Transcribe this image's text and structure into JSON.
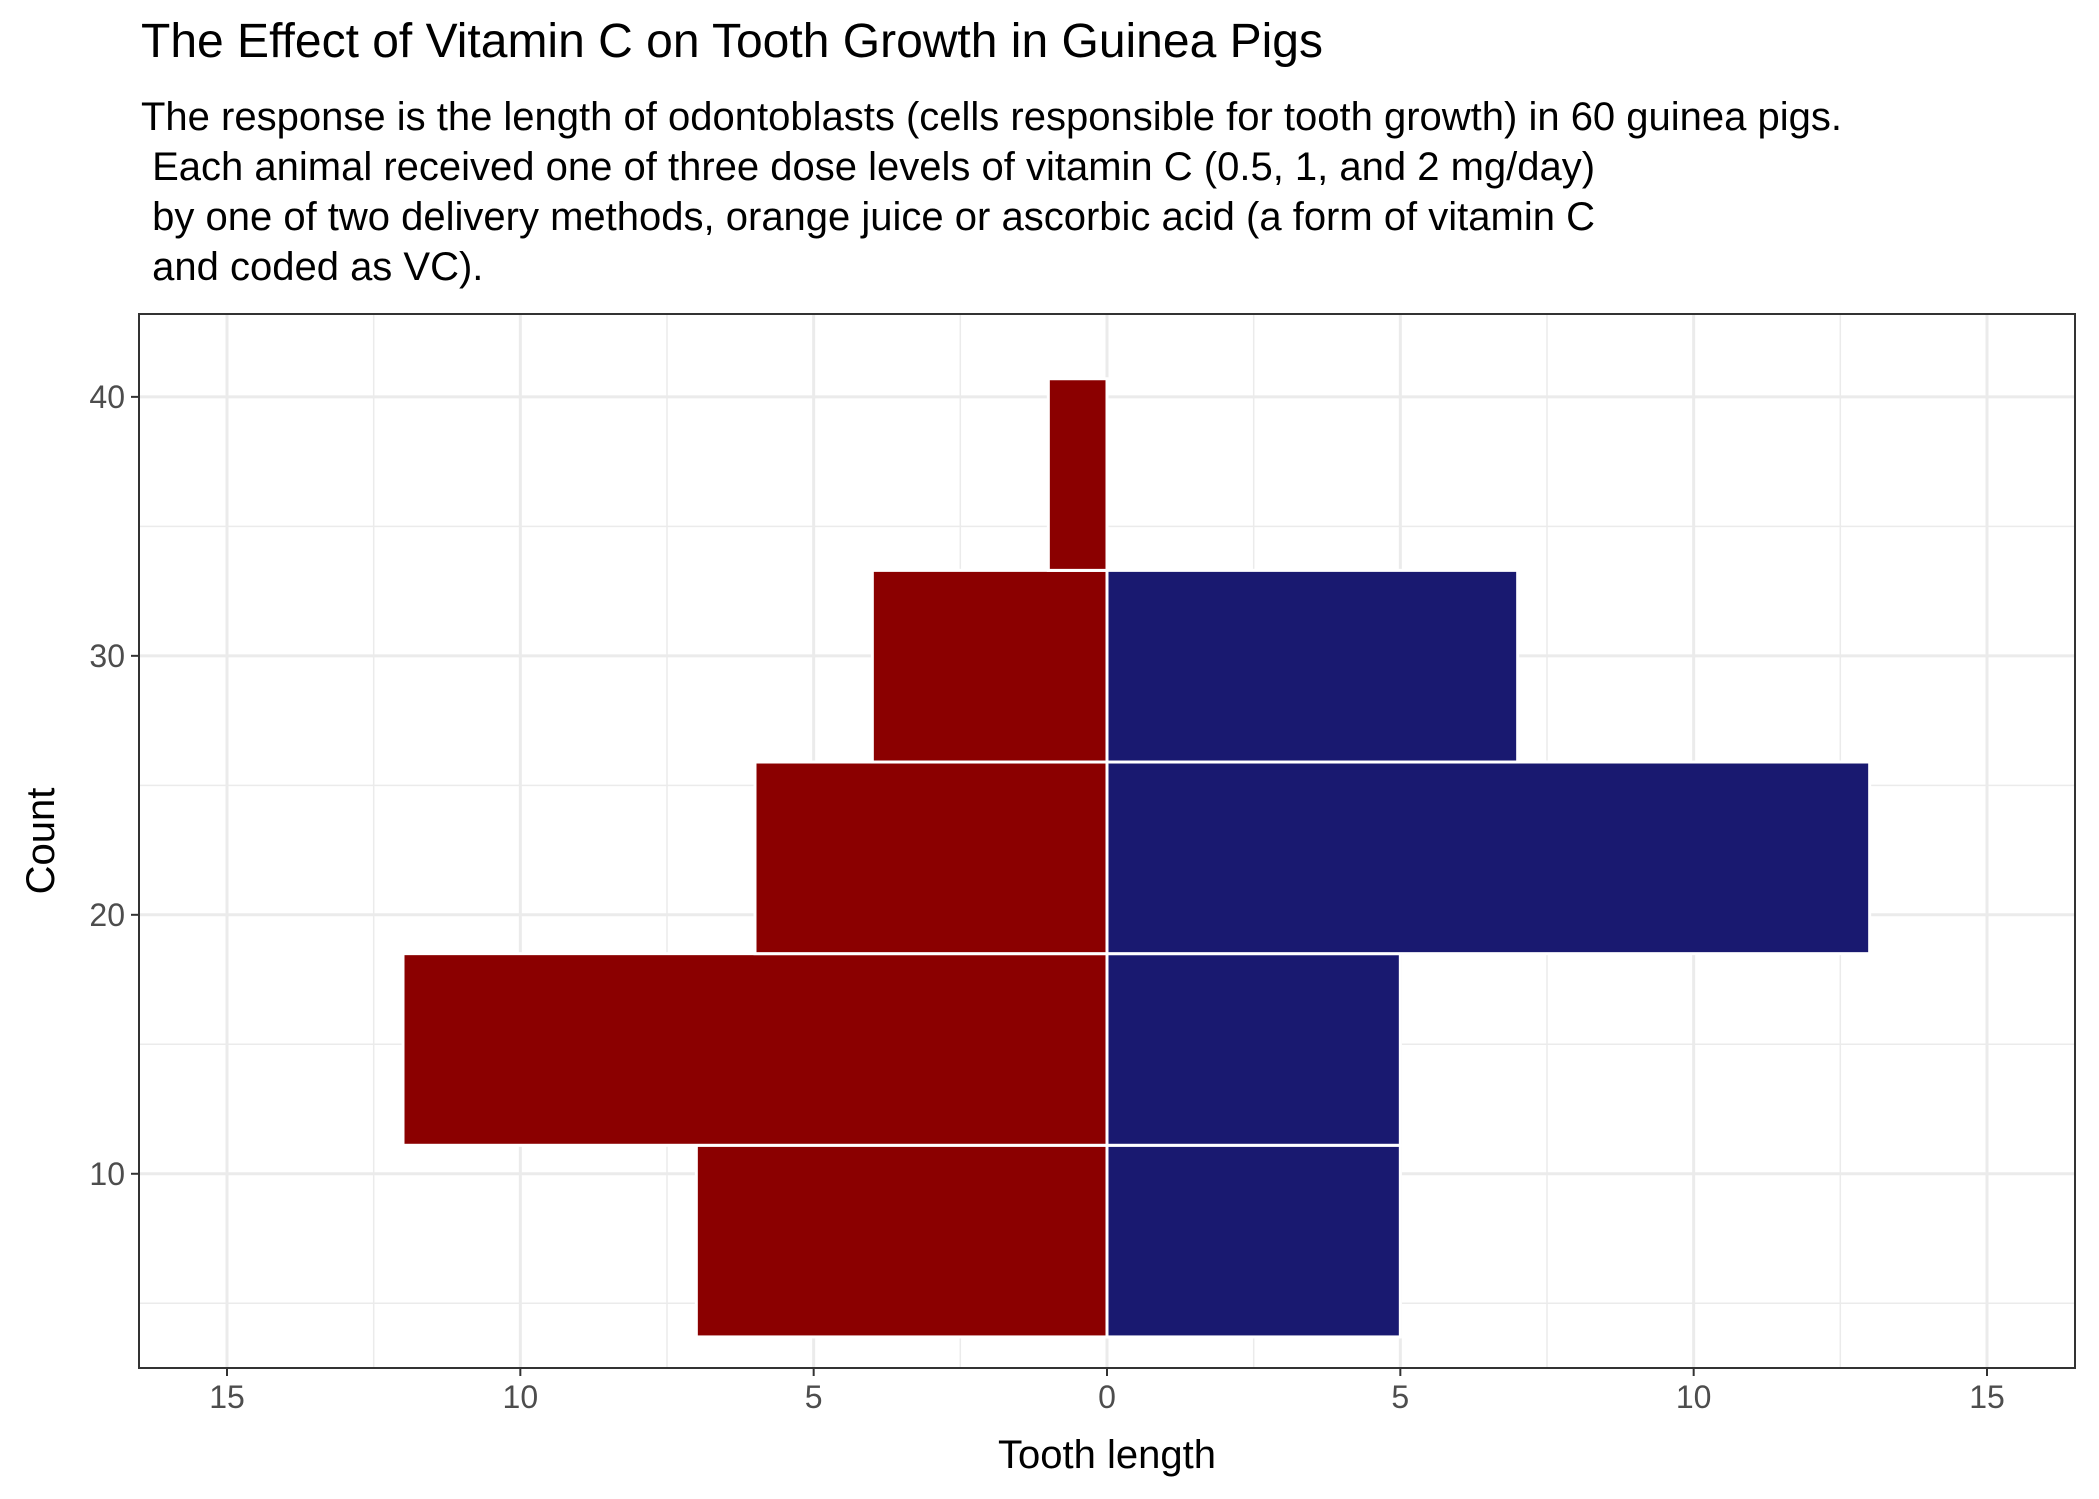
{
  "chart_data": {
    "type": "bar",
    "orientation": "horizontal-back-to-back",
    "title": "The Effect of Vitamin C on Tooth Growth in Guinea Pigs",
    "subtitle": "The response is the length of odontoblasts (cells responsible for tooth growth) in 60 guinea pigs.\n Each animal received one of three dose levels of vitamin C (0.5, 1, and 2 mg/day)\n by one of two delivery methods, orange juice or ascorbic acid (a form of vitamin C\n and coded as VC).",
    "xlabel": "Tooth length",
    "ylabel": "Count",
    "xlim": [
      -16.5,
      16.5
    ],
    "ylim": [
      2.5,
      43.2
    ],
    "x_ticks": [
      -15,
      -10,
      -5,
      0,
      5,
      10,
      15
    ],
    "x_tick_labels": [
      "15",
      "10",
      "5",
      "0",
      "5",
      "10",
      "15"
    ],
    "y_ticks": [
      10,
      20,
      30,
      40
    ],
    "y_tick_labels": [
      "10",
      "20",
      "30",
      "40"
    ],
    "grid": true,
    "legend": "none",
    "bin_width": 7.4,
    "series": [
      {
        "side": "left",
        "color": "#8B0000",
        "bins": [
          {
            "center": 7.4,
            "count": 7
          },
          {
            "center": 14.8,
            "count": 12
          },
          {
            "center": 22.2,
            "count": 6
          },
          {
            "center": 29.6,
            "count": 4
          },
          {
            "center": 37.0,
            "count": 1
          }
        ]
      },
      {
        "side": "right",
        "color": "#191970",
        "bins": [
          {
            "center": 7.4,
            "count": 5
          },
          {
            "center": 14.8,
            "count": 5
          },
          {
            "center": 22.2,
            "count": 13
          },
          {
            "center": 29.6,
            "count": 7
          },
          {
            "center": 37.0,
            "count": 0
          }
        ]
      }
    ]
  }
}
